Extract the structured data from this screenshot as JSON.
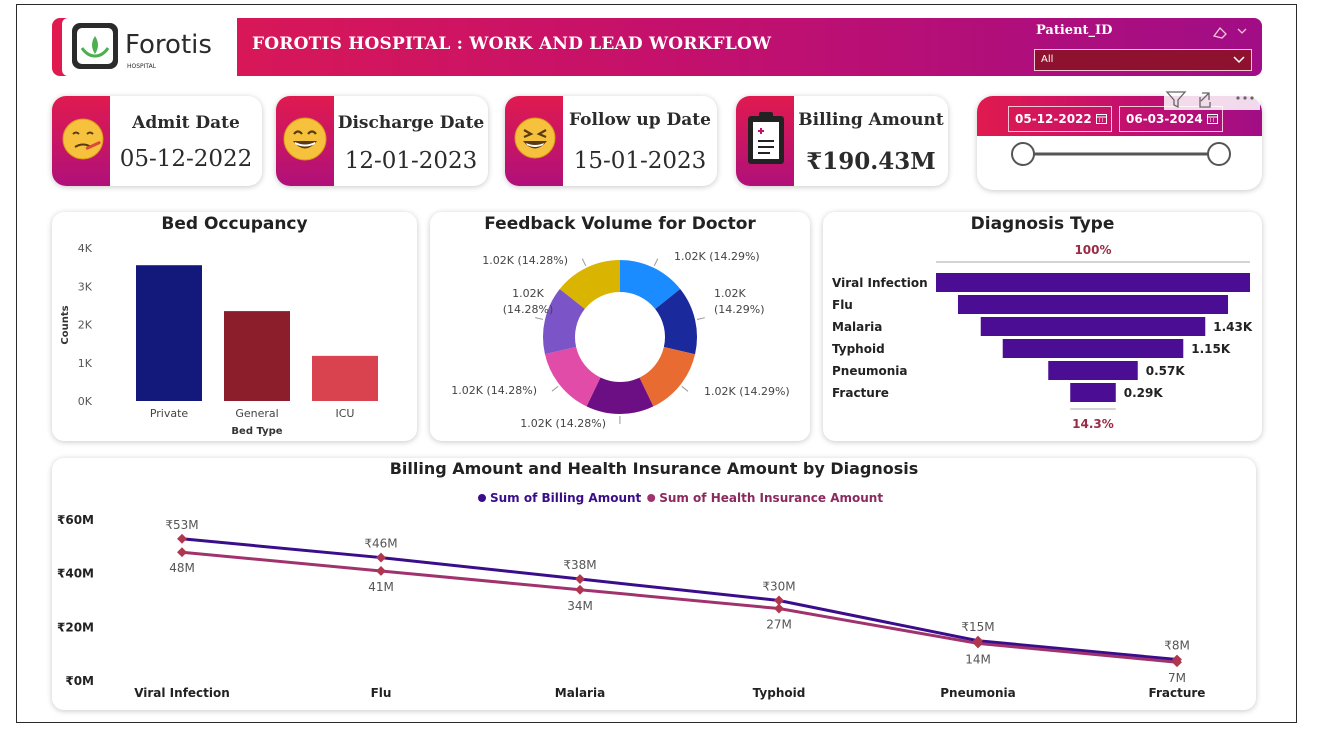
{
  "header": {
    "logo_text": "Forotis",
    "logo_sub": "HOSPITAL",
    "title": "FOROTIS HOSPITAL : WORK AND LEAD WORKFLOW",
    "brand_color": "#c2106e"
  },
  "patient_slicer": {
    "label": "Patient_ID",
    "value": "All"
  },
  "kpis": [
    {
      "title": "Admit Date",
      "value": "05-12-2022",
      "icon": "sick-face-icon"
    },
    {
      "title": "Discharge Date",
      "value": "12-01-2023",
      "icon": "grin-face-icon"
    },
    {
      "title": "Follow up Date",
      "value": "15-01-2023",
      "icon": "laughing-face-icon"
    },
    {
      "title": "Billing Amount",
      "value": "₹190.43M",
      "icon": "clipboard-report-icon"
    }
  ],
  "date_slicer": {
    "start": "05-12-2022",
    "end": "06-03-2024"
  },
  "chart_data": [
    {
      "type": "bar",
      "title": "Bed Occupancy",
      "xlabel": "Bed Type",
      "ylabel": "Counts",
      "categories": [
        "Private",
        "General",
        "ICU"
      ],
      "values": [
        3550,
        2350,
        1180
      ],
      "colors": [
        "#12197a",
        "#8c1d2a",
        "#d9434f"
      ],
      "yticks": [
        "0K",
        "1K",
        "2K",
        "3K",
        "4K"
      ],
      "ylim": [
        0,
        4000
      ]
    },
    {
      "type": "pie",
      "title": "Feedback Volume for Doctor",
      "slices": [
        {
          "label": "1.02K (14.29%)",
          "value": 14.29,
          "color": "#1a8cff"
        },
        {
          "label": "1.02K (14.29%)",
          "value": 14.29,
          "color": "#1a2a9c"
        },
        {
          "label": "1.02K (14.29%)",
          "value": 14.29,
          "color": "#e86b31"
        },
        {
          "label": "1.02K (14.28%)",
          "value": 14.28,
          "color": "#6c0f84"
        },
        {
          "label": "1.02K (14.28%)",
          "value": 14.28,
          "color": "#e14ca8"
        },
        {
          "label": "1.02K (14.28%)",
          "value": 14.28,
          "color": "#7b55c8"
        },
        {
          "label": "1.02K (14.28%)",
          "value": 14.28,
          "color": "#d9b400"
        }
      ]
    },
    {
      "type": "bar",
      "subtype": "funnel",
      "title": "Diagnosis Type",
      "categories": [
        "Viral Infection",
        "Flu",
        "Malaria",
        "Typhoid",
        "Pneumonia",
        "Fracture"
      ],
      "values": [
        2.0,
        1.72,
        1.43,
        1.15,
        0.57,
        0.29
      ],
      "data_labels": [
        "",
        "",
        "1.43K",
        "1.15K",
        "0.57K",
        "0.29K"
      ],
      "top_label": "100%",
      "bottom_label": "14.3%",
      "color": "#4b0d94"
    },
    {
      "type": "line",
      "title": "Billing Amount and Health Insurance Amount by Diagnosis",
      "categories": [
        "Viral Infection",
        "Flu",
        "Malaria",
        "Typhoid",
        "Pneumonia",
        "Fracture"
      ],
      "yticks": [
        "₹0M",
        "₹20M",
        "₹40M",
        "₹60M"
      ],
      "ylim": [
        0,
        60
      ],
      "series": [
        {
          "name": "Sum of Billing Amount",
          "values": [
            53,
            46,
            38,
            30,
            15,
            8
          ],
          "labels": [
            "₹53M",
            "₹46M",
            "₹38M",
            "₹30M",
            "₹15M",
            "₹8M"
          ],
          "color": "#3a0d8a"
        },
        {
          "name": "Sum of Health Insurance Amount",
          "values": [
            48,
            41,
            34,
            27,
            14,
            7
          ],
          "labels": [
            "48M",
            "41M",
            "34M",
            "27M",
            "14M",
            "7M"
          ],
          "color": "#a0336e"
        }
      ]
    }
  ]
}
